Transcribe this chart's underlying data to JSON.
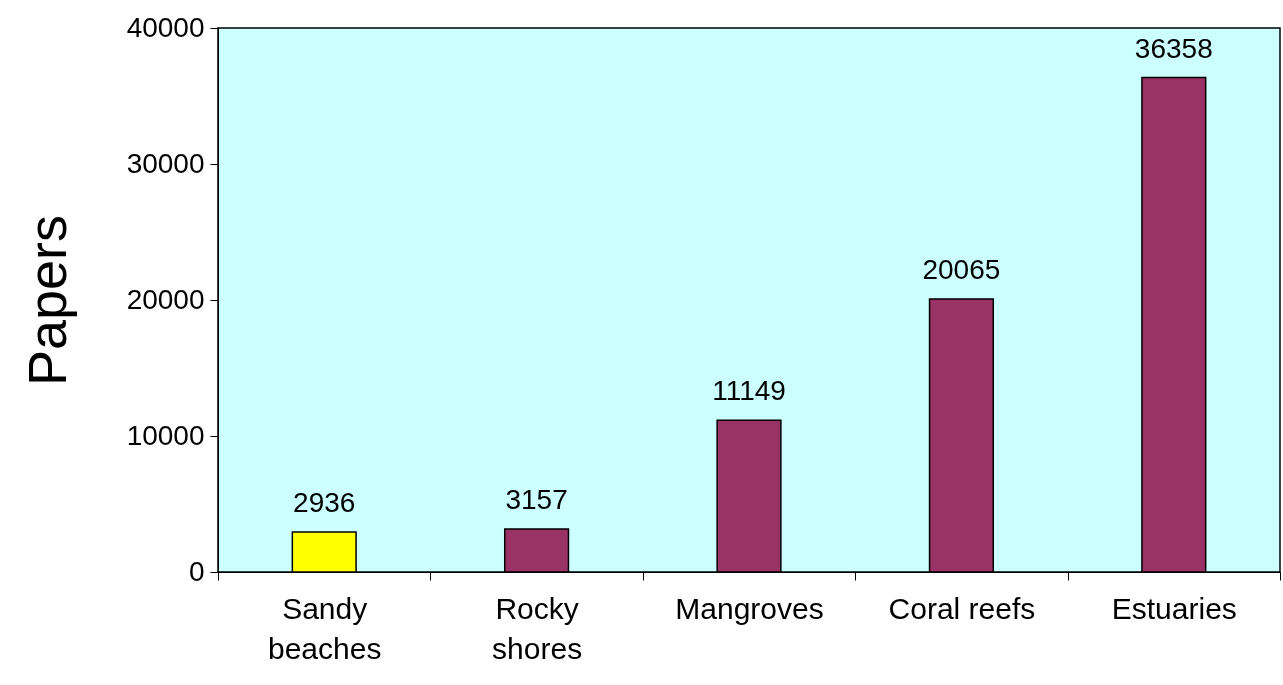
{
  "chart_data": {
    "type": "bar",
    "ylabel": "Papers",
    "categories": [
      "Sandy beaches",
      "Rocky shores",
      "Mangroves",
      "Coral reefs",
      "Estuaries"
    ],
    "values": [
      2936,
      3157,
      11149,
      20065,
      36358
    ],
    "colors": [
      "#ffff00",
      "#993366",
      "#993366",
      "#993366",
      "#993366"
    ],
    "ylim": [
      0,
      40000
    ],
    "yticks": [
      0,
      10000,
      20000,
      30000,
      40000
    ],
    "grid": false,
    "data_labels": true
  }
}
